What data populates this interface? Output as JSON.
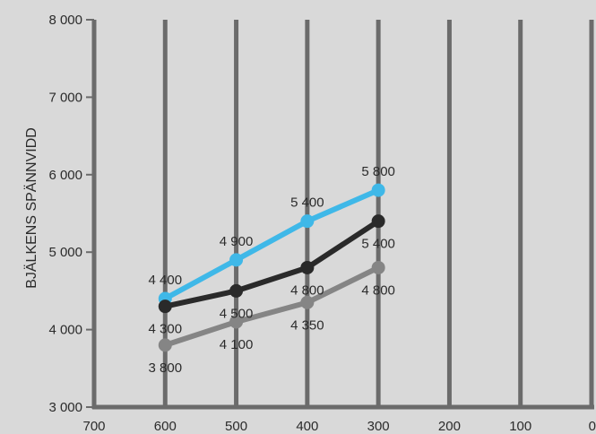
{
  "chart_data": {
    "type": "line",
    "title": "",
    "xlabel": "",
    "ylabel": "BJÄLKENS SPÄNNVIDD",
    "x_reversed": true,
    "xlim": [
      700,
      0
    ],
    "ylim": [
      3000,
      8000
    ],
    "x_ticks": [
      700,
      600,
      500,
      400,
      300,
      200,
      100,
      0
    ],
    "x_tick_labels": [
      "700",
      "600",
      "500",
      "400",
      "300",
      "200",
      "100",
      "0"
    ],
    "y_ticks": [
      3000,
      4000,
      5000,
      6000,
      7000,
      8000
    ],
    "y_tick_labels": [
      "3 000",
      "4 000",
      "5 000",
      "6 000",
      "7 000",
      "8 000"
    ],
    "grid": "vertical",
    "series": [
      {
        "color": "#3fb8e8",
        "x": [
          600,
          500,
          400,
          300
        ],
        "values": [
          4400,
          4900,
          5400,
          5800
        ],
        "labels": [
          "4 400",
          "4 900",
          "5 400",
          "5 800"
        ],
        "label_position": "above"
      },
      {
        "color": "#2a2a2a",
        "x": [
          600,
          500,
          400,
          300
        ],
        "values": [
          4300,
          4500,
          4800,
          5400
        ],
        "labels": [
          "4 300",
          "4 500",
          "4 800",
          "5 400"
        ],
        "label_position": "below"
      },
      {
        "color": "#858585",
        "x": [
          600,
          500,
          400,
          300
        ],
        "values": [
          3800,
          4100,
          4350,
          4800
        ],
        "labels": [
          "3 800",
          "4 100",
          "4 350",
          "4 800"
        ],
        "label_position": "below"
      }
    ]
  }
}
